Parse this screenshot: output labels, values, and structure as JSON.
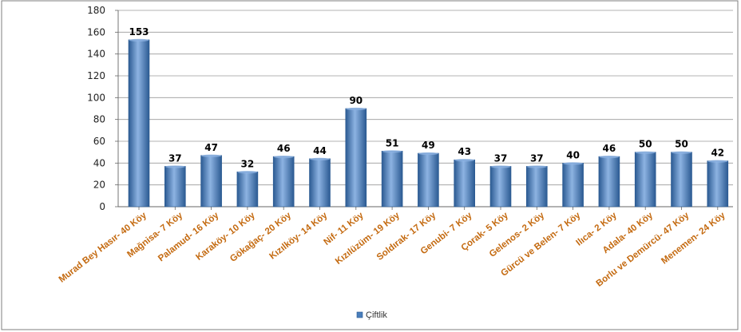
{
  "chart_data": {
    "type": "bar",
    "categories": [
      "Murad Bey Hasır- 40 Köy",
      "Mağnisa- 7 Köy",
      "Palamud- 16 Köy",
      "Karaköy- 10 Köy",
      "Gökağaç- 20 Köy",
      "Kızılköy- 14 Köy",
      "Nif- 11 Köy",
      "Kızılüzüm- 19 Köy",
      "Soldırak- 17 Köy",
      "Genubi- 7 Köy",
      "Çorak- 5 Köy",
      "Gelenos- 2 Köy",
      "Gürcü ve Belen- 7 Köy",
      "Ilıca- 2 Köy",
      "Adala- 40 Köy",
      "Borlu ve Demürcü- 47 Köy",
      "Menemen- 24 Köy"
    ],
    "series": [
      {
        "name": "Çiftlik",
        "values": [
          153,
          37,
          47,
          32,
          46,
          44,
          90,
          51,
          49,
          43,
          37,
          37,
          40,
          46,
          50,
          50,
          42
        ]
      }
    ],
    "y_ticks": [
      "0",
      "20",
      "40",
      "60",
      "80",
      "100",
      "120",
      "140",
      "160",
      "180"
    ],
    "ylim": [
      0,
      180
    ],
    "grid": true,
    "legend_position": "bottom",
    "colors": {
      "bar": "#4a7ebb",
      "bar_dark": "#2b5a92",
      "bar_light": "#8db3e2",
      "category_text": "#c46a10",
      "grid": "#9a9a9a",
      "border": "#7f7f7f"
    }
  }
}
